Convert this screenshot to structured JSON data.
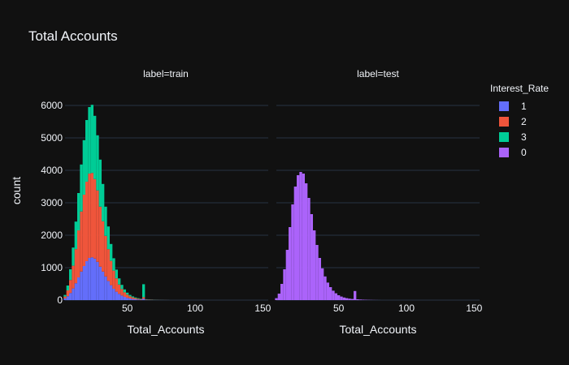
{
  "chart_data": {
    "type": "bar",
    "title": "Total Accounts",
    "ylabel": "count",
    "ylim": [
      0,
      6300
    ],
    "y_ticks": [
      0,
      1000,
      2000,
      3000,
      4000,
      5000,
      6000
    ],
    "x_ticks": [
      50,
      100,
      150
    ],
    "xlim": [
      4,
      154
    ],
    "grid": true,
    "barmode": "stack",
    "legend": {
      "title": "Interest_Rate",
      "placement": "right",
      "items": [
        {
          "name": "1",
          "color": "#636efa"
        },
        {
          "name": "2",
          "color": "#EF553B"
        },
        {
          "name": "3",
          "color": "#00cc96"
        },
        {
          "name": "0",
          "color": "#ab63fa"
        }
      ]
    },
    "facets": [
      {
        "label": "label=train",
        "xlabel": "Total_Accounts",
        "series": [
          {
            "name": "1",
            "color": "#636efa",
            "x": [
              4,
              6,
              8,
              10,
              12,
              14,
              16,
              18,
              20,
              22,
              24,
              26,
              28,
              30,
              32,
              34,
              36,
              38,
              40,
              42,
              44,
              46,
              48,
              50,
              52,
              54,
              56,
              58,
              60,
              62,
              64,
              66,
              68,
              70,
              72,
              74,
              76,
              78,
              80
            ],
            "y": [
              50,
              120,
              220,
              360,
              520,
              700,
              880,
              1050,
              1200,
              1300,
              1320,
              1280,
              1180,
              1030,
              880,
              730,
              590,
              460,
              350,
              260,
              190,
              140,
              100,
              70,
              50,
              35,
              25,
              18,
              13,
              40,
              8,
              6,
              5,
              4,
              3,
              2,
              2,
              1,
              1
            ]
          },
          {
            "name": "2",
            "color": "#EF553B",
            "x": [
              4,
              6,
              8,
              10,
              12,
              14,
              16,
              18,
              20,
              22,
              24,
              26,
              28,
              30,
              32,
              34,
              36,
              38,
              40,
              42,
              44,
              46,
              48,
              50,
              52,
              54,
              56,
              58,
              60,
              62,
              64,
              66,
              68,
              70,
              72,
              74,
              76,
              78,
              80
            ],
            "y": [
              60,
              180,
              400,
              700,
              1050,
              1450,
              1850,
              2200,
              2450,
              2600,
              2600,
              2450,
              2200,
              1850,
              1550,
              1250,
              980,
              750,
              560,
              410,
              290,
              200,
              140,
              100,
              70,
              50,
              35,
              25,
              18,
              50,
              12,
              9,
              7,
              5,
              4,
              3,
              2,
              2,
              1
            ]
          },
          {
            "name": "3",
            "color": "#00cc96",
            "x": [
              4,
              6,
              8,
              10,
              12,
              14,
              16,
              18,
              20,
              22,
              24,
              26,
              28,
              30,
              32,
              34,
              36,
              38,
              40,
              42,
              44,
              46,
              48,
              50,
              52,
              54,
              56,
              58,
              60,
              62,
              64,
              66,
              68,
              70,
              72,
              74,
              76,
              78,
              80
            ],
            "y": [
              50,
              150,
              330,
              560,
              850,
              1150,
              1450,
              1680,
              1900,
              2050,
              2100,
              1950,
              1700,
              1450,
              1150,
              900,
              700,
              520,
              380,
              270,
              190,
              130,
              90,
              60,
              40,
              30,
              22,
              16,
              12,
              400,
              8,
              6,
              5,
              4,
              3,
              2,
              2,
              1,
              1
            ]
          }
        ]
      },
      {
        "label": "label=test",
        "xlabel": "Total_Accounts",
        "series": [
          {
            "name": "0",
            "color": "#ab63fa",
            "x": [
              4,
              6,
              8,
              10,
              12,
              14,
              16,
              18,
              20,
              22,
              24,
              26,
              28,
              30,
              32,
              34,
              36,
              38,
              40,
              42,
              44,
              46,
              48,
              50,
              52,
              54,
              56,
              58,
              60,
              62,
              64,
              66,
              68,
              70,
              72,
              74,
              76,
              78,
              80
            ],
            "y": [
              60,
              200,
              500,
              950,
              1550,
              2250,
              2950,
              3500,
              3850,
              3950,
              3900,
              3600,
              3150,
              2650,
              2150,
              1700,
              1300,
              980,
              730,
              540,
              400,
              290,
              210,
              150,
              110,
              80,
              60,
              45,
              35,
              280,
              25,
              18,
              13,
              10,
              7,
              5,
              3,
              2,
              1
            ]
          }
        ]
      }
    ]
  }
}
